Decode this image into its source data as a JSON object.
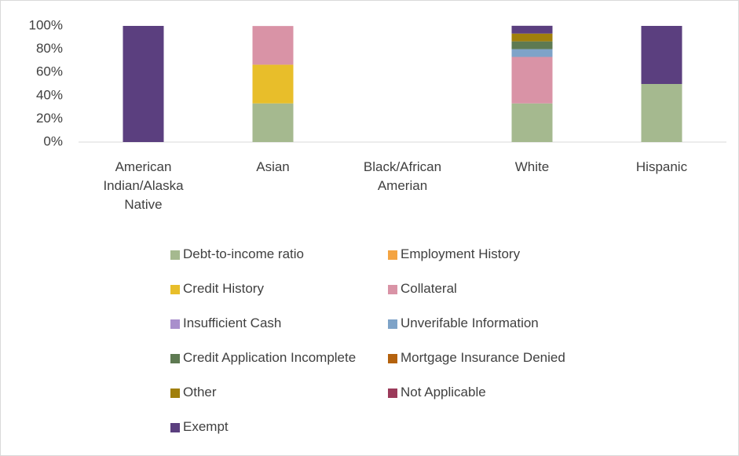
{
  "chart_data": {
    "type": "stacked_bar",
    "categories": [
      "American Indian/Alaska Native",
      "Asian",
      "Black/African Amerian",
      "White",
      "Hispanic"
    ],
    "series": [
      {
        "name": "Debt-to-income ratio",
        "color": "#a5b98f",
        "values": [
          0,
          33.3,
          0,
          33.3,
          50
        ]
      },
      {
        "name": "Employment History",
        "color": "#f4a442",
        "values": [
          0,
          0,
          0,
          0,
          0
        ]
      },
      {
        "name": "Credit History",
        "color": "#e8be2a",
        "values": [
          0,
          33.3,
          0,
          0,
          0
        ]
      },
      {
        "name": "Collateral",
        "color": "#d993a6",
        "values": [
          0,
          33.3,
          0,
          40,
          0
        ]
      },
      {
        "name": "Insufficient Cash",
        "color": "#a98fcc",
        "values": [
          0,
          0,
          0,
          0,
          0
        ]
      },
      {
        "name": "Unverifable Information",
        "color": "#7ea3c8",
        "values": [
          0,
          0,
          0,
          6.7,
          0
        ]
      },
      {
        "name": "Credit Application Incomplete",
        "color": "#5e7a52",
        "values": [
          0,
          0,
          0,
          6.7,
          0
        ]
      },
      {
        "name": "Mortgage Insurance Denied",
        "color": "#b4620e",
        "values": [
          0,
          0,
          0,
          0,
          0
        ]
      },
      {
        "name": "Other",
        "color": "#a07f0c",
        "values": [
          0,
          0,
          0,
          6.7,
          0
        ]
      },
      {
        "name": "Not Applicable",
        "color": "#9b3a5a",
        "values": [
          0,
          0,
          0,
          0,
          0
        ]
      },
      {
        "name": "Exempt",
        "color": "#5b3f7f",
        "values": [
          100,
          0,
          0,
          6.7,
          50
        ]
      }
    ],
    "ylim": [
      0,
      100
    ],
    "yticks": [
      {
        "value": 0,
        "label": "0%"
      },
      {
        "value": 20,
        "label": "20%"
      },
      {
        "value": 40,
        "label": "40%"
      },
      {
        "value": 60,
        "label": "60%"
      },
      {
        "value": 80,
        "label": "80%"
      },
      {
        "value": 100,
        "label": "100%"
      }
    ],
    "grid": false,
    "legend": "bottom"
  }
}
